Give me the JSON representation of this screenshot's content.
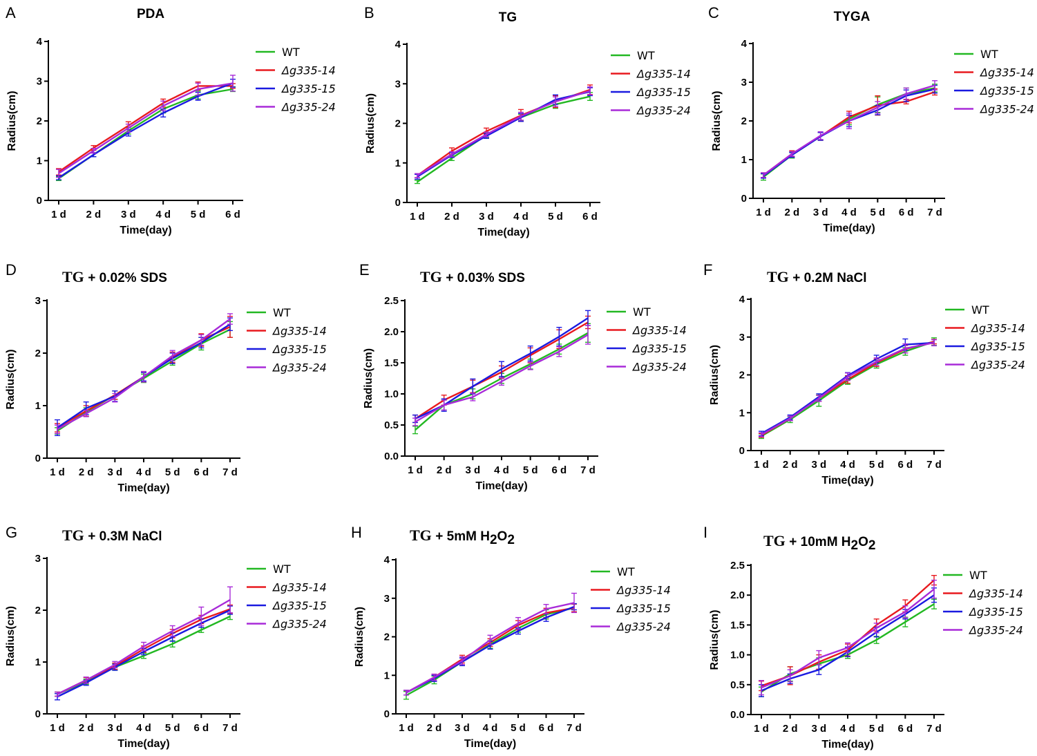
{
  "series_names": [
    "WT",
    "Δg335-14",
    "Δg335-15",
    "Δg335-24"
  ],
  "colors": {
    "WT": "#22b822",
    "Δg335-14": "#e8191e",
    "Δg335-15": "#1a1ae0",
    "Δg335-24": "#a82ad8",
    "axis": "#000000"
  },
  "chart_data": [
    {
      "panel": "A",
      "type": "line",
      "title": {
        "serif": "",
        "sans": "PDA",
        "sub": ""
      },
      "xlabel": "Time(day)",
      "ylabel": "Radius(cm)",
      "categories": [
        "1 d",
        "2 d",
        "3 d",
        "4 d",
        "5 d",
        "6 d"
      ],
      "ylim": [
        0,
        4
      ],
      "yticks": [
        "0",
        "1",
        "2",
        "3",
        "4"
      ],
      "series": [
        {
          "name": "WT",
          "values": [
            0.55,
            1.15,
            1.75,
            2.3,
            2.65,
            2.8
          ],
          "err": [
            0.05,
            0.05,
            0.08,
            0.1,
            0.1,
            0.06
          ]
        },
        {
          "name": "Δg335-14",
          "values": [
            0.72,
            1.32,
            1.88,
            2.45,
            2.88,
            2.88
          ],
          "err": [
            0.08,
            0.06,
            0.1,
            0.1,
            0.1,
            0.06
          ]
        },
        {
          "name": "Δg335-15",
          "values": [
            0.57,
            1.15,
            1.7,
            2.2,
            2.62,
            2.95
          ],
          "err": [
            0.05,
            0.05,
            0.08,
            0.1,
            0.1,
            0.1
          ]
        },
        {
          "name": "Δg335-24",
          "values": [
            0.68,
            1.25,
            1.82,
            2.38,
            2.8,
            2.95
          ],
          "err": [
            0.1,
            0.06,
            0.1,
            0.12,
            0.15,
            0.2
          ]
        }
      ]
    },
    {
      "panel": "B",
      "type": "line",
      "title": {
        "serif": "",
        "sans": "TG",
        "sub": ""
      },
      "xlabel": "Time(day)",
      "ylabel": "Radius(cm)",
      "categories": [
        "1 d",
        "2 d",
        "3 d",
        "4 d",
        "5 d",
        "6 d"
      ],
      "ylim": [
        0,
        4
      ],
      "yticks": [
        "0",
        "1",
        "2",
        "3",
        "4"
      ],
      "series": [
        {
          "name": "WT",
          "values": [
            0.52,
            1.12,
            1.7,
            2.15,
            2.48,
            2.68
          ],
          "err": [
            0.04,
            0.06,
            0.06,
            0.08,
            0.1,
            0.1
          ]
        },
        {
          "name": "Δg335-14",
          "values": [
            0.68,
            1.3,
            1.8,
            2.2,
            2.55,
            2.85
          ],
          "err": [
            0.05,
            0.08,
            0.08,
            0.15,
            0.15,
            0.12
          ]
        },
        {
          "name": "Δg335-15",
          "values": [
            0.65,
            1.2,
            1.68,
            2.15,
            2.6,
            2.8
          ],
          "err": [
            0.06,
            0.06,
            0.06,
            0.1,
            0.12,
            0.1
          ]
        },
        {
          "name": "Δg335-24",
          "values": [
            0.68,
            1.22,
            1.72,
            2.18,
            2.55,
            2.82
          ],
          "err": [
            0.05,
            0.06,
            0.06,
            0.1,
            0.12,
            0.1
          ]
        }
      ]
    },
    {
      "panel": "C",
      "type": "line",
      "title": {
        "serif": "",
        "sans": "TYGA",
        "sub": ""
      },
      "xlabel": "Time(day)",
      "ylabel": "Radius(cm)",
      "categories": [
        "1 d",
        "2 d",
        "3 d",
        "4 d",
        "5 d",
        "6 d",
        "7 d"
      ],
      "ylim": [
        0,
        4
      ],
      "yticks": [
        "0",
        "1",
        "2",
        "3",
        "4"
      ],
      "series": [
        {
          "name": "WT",
          "values": [
            0.55,
            1.12,
            1.6,
            2.05,
            2.42,
            2.7,
            2.85
          ],
          "err": [
            0.08,
            0.08,
            0.1,
            0.15,
            0.2,
            0.15,
            0.1
          ]
        },
        {
          "name": "Δg335-14",
          "values": [
            0.6,
            1.15,
            1.6,
            2.1,
            2.4,
            2.5,
            2.75
          ],
          "err": [
            0.06,
            0.08,
            0.1,
            0.15,
            0.25,
            0.06,
            0.08
          ]
        },
        {
          "name": "Δg335-15",
          "values": [
            0.58,
            1.12,
            1.6,
            2.0,
            2.28,
            2.65,
            2.82
          ],
          "err": [
            0.06,
            0.06,
            0.1,
            0.15,
            0.12,
            0.15,
            0.1
          ]
        },
        {
          "name": "Δg335-24",
          "values": [
            0.6,
            1.15,
            1.62,
            2.0,
            2.35,
            2.7,
            2.92
          ],
          "err": [
            0.06,
            0.06,
            0.1,
            0.2,
            0.15,
            0.15,
            0.12
          ]
        }
      ]
    },
    {
      "panel": "D",
      "type": "line",
      "title": {
        "serif": "TG",
        "sans": "+ 0.02% SDS",
        "sub": ""
      },
      "xlabel": "Time(day)",
      "ylabel": "Radius(cm)",
      "categories": [
        "1 d",
        "2 d",
        "3 d",
        "4 d",
        "5 d",
        "6 d",
        "7 d"
      ],
      "ylim": [
        0,
        3
      ],
      "yticks": [
        "0",
        "1",
        "2",
        "3"
      ],
      "series": [
        {
          "name": "WT",
          "values": [
            0.52,
            0.88,
            1.2,
            1.52,
            1.85,
            2.18,
            2.45
          ],
          "err": [
            0.06,
            0.08,
            0.08,
            0.08,
            0.08,
            0.12,
            0.15
          ]
        },
        {
          "name": "Δg335-14",
          "values": [
            0.58,
            0.9,
            1.2,
            1.55,
            1.92,
            2.25,
            2.5
          ],
          "err": [
            0.08,
            0.1,
            0.08,
            0.1,
            0.1,
            0.12,
            0.2
          ]
        },
        {
          "name": "Δg335-15",
          "values": [
            0.58,
            0.95,
            1.18,
            1.55,
            1.9,
            2.2,
            2.55
          ],
          "err": [
            0.15,
            0.12,
            0.1,
            0.08,
            0.1,
            0.1,
            0.12
          ]
        },
        {
          "name": "Δg335-24",
          "values": [
            0.55,
            0.85,
            1.15,
            1.55,
            1.95,
            2.25,
            2.65
          ],
          "err": [
            0.08,
            0.06,
            0.08,
            0.1,
            0.1,
            0.1,
            0.1
          ]
        }
      ]
    },
    {
      "panel": "E",
      "type": "line",
      "title": {
        "serif": "TG",
        "sans": "+ 0.03% SDS",
        "sub": ""
      },
      "xlabel": "Time(day)",
      "ylabel": "Radius(cm)",
      "categories": [
        "1 d",
        "2 d",
        "3 d",
        "4 d",
        "5 d",
        "6 d",
        "7 d"
      ],
      "ylim": [
        0,
        2.5
      ],
      "yticks": [
        "0.0",
        "0.5",
        "1.0",
        "1.5",
        "2.0",
        "2.5"
      ],
      "series": [
        {
          "name": "WT",
          "values": [
            0.42,
            0.82,
            1.0,
            1.25,
            1.48,
            1.72,
            1.98
          ],
          "err": [
            0.06,
            0.08,
            0.08,
            0.08,
            0.08,
            0.08,
            0.15
          ]
        },
        {
          "name": "Δg335-14",
          "values": [
            0.6,
            0.9,
            1.12,
            1.35,
            1.62,
            1.88,
            2.15
          ],
          "err": [
            0.06,
            0.08,
            0.1,
            0.1,
            0.12,
            0.15,
            0.1
          ]
        },
        {
          "name": "Δg335-15",
          "values": [
            0.6,
            0.82,
            1.12,
            1.4,
            1.65,
            1.92,
            2.22
          ],
          "err": [
            0.06,
            0.1,
            0.12,
            0.12,
            0.12,
            0.15,
            0.12
          ]
        },
        {
          "name": "Δg335-24",
          "values": [
            0.55,
            0.82,
            0.95,
            1.2,
            1.45,
            1.68,
            1.95
          ],
          "err": [
            0.06,
            0.08,
            0.06,
            0.06,
            0.06,
            0.08,
            0.15
          ]
        }
      ]
    },
    {
      "panel": "F",
      "type": "line",
      "title": {
        "serif": "TG",
        "sans": "+ 0.2M NaCl",
        "sub": ""
      },
      "xlabel": "Time(day)",
      "ylabel": "Radius(cm)",
      "categories": [
        "1 d",
        "2 d",
        "3 d",
        "4 d",
        "5 d",
        "6 d",
        "7 d"
      ],
      "ylim": [
        0,
        4
      ],
      "yticks": [
        "0",
        "1",
        "2",
        "3",
        "4"
      ],
      "series": [
        {
          "name": "WT",
          "values": [
            0.38,
            0.82,
            1.32,
            1.85,
            2.28,
            2.62,
            2.88
          ],
          "err": [
            0.06,
            0.08,
            0.15,
            0.1,
            0.1,
            0.1,
            0.1
          ]
        },
        {
          "name": "Δg335-14",
          "values": [
            0.4,
            0.85,
            1.38,
            1.88,
            2.32,
            2.68,
            2.88
          ],
          "err": [
            0.05,
            0.06,
            0.08,
            0.1,
            0.1,
            0.1,
            0.06
          ]
        },
        {
          "name": "Δg335-15",
          "values": [
            0.45,
            0.88,
            1.42,
            1.98,
            2.42,
            2.8,
            2.85
          ],
          "err": [
            0.06,
            0.06,
            0.08,
            0.08,
            0.1,
            0.15,
            0.08
          ]
        },
        {
          "name": "Δg335-24",
          "values": [
            0.42,
            0.85,
            1.38,
            1.95,
            2.35,
            2.7,
            2.85
          ],
          "err": [
            0.05,
            0.06,
            0.08,
            0.1,
            0.1,
            0.12,
            0.08
          ]
        }
      ]
    },
    {
      "panel": "G",
      "type": "line",
      "title": {
        "serif": "TG",
        "sans": "+  0.3M NaCl",
        "sub": ""
      },
      "xlabel": "Time(day)",
      "ylabel": "Radius(cm)",
      "categories": [
        "1 d",
        "2 d",
        "3 d",
        "4 d",
        "5 d",
        "6 d",
        "7 d"
      ],
      "ylim": [
        0,
        3
      ],
      "yticks": [
        "0",
        "1",
        "2",
        "3"
      ],
      "series": [
        {
          "name": "WT",
          "values": [
            0.38,
            0.62,
            0.9,
            1.12,
            1.35,
            1.62,
            1.88
          ],
          "err": [
            0.04,
            0.05,
            0.06,
            0.05,
            0.06,
            0.05,
            0.06
          ]
        },
        {
          "name": "Δg335-14",
          "values": [
            0.38,
            0.65,
            0.92,
            1.25,
            1.55,
            1.82,
            2.02
          ],
          "err": [
            0.04,
            0.05,
            0.06,
            0.06,
            0.08,
            0.08,
            0.08
          ]
        },
        {
          "name": "Δg335-15",
          "values": [
            0.33,
            0.6,
            0.9,
            1.2,
            1.48,
            1.75,
            2.0
          ],
          "err": [
            0.06,
            0.05,
            0.06,
            0.06,
            0.08,
            0.08,
            0.08
          ]
        },
        {
          "name": "Δg335-24",
          "values": [
            0.38,
            0.65,
            0.95,
            1.3,
            1.6,
            1.88,
            2.2
          ],
          "err": [
            0.04,
            0.06,
            0.06,
            0.08,
            0.1,
            0.18,
            0.25
          ]
        }
      ]
    },
    {
      "panel": "H",
      "type": "line",
      "title": {
        "serif": "TG",
        "sans": "+  5mM H",
        "sub": "2",
        "sans2": "O",
        "sub2": "2"
      },
      "xlabel": "Time(day)",
      "ylabel": "Radius(cm)",
      "categories": [
        "1 d",
        "2 d",
        "3 d",
        "4 d",
        "5 d",
        "6 d",
        "7 d"
      ],
      "ylim": [
        0,
        4
      ],
      "yticks": [
        "0",
        "1",
        "2",
        "3",
        "4"
      ],
      "series": [
        {
          "name": "WT",
          "values": [
            0.48,
            0.88,
            1.35,
            1.8,
            2.22,
            2.58,
            2.75
          ],
          "err": [
            0.1,
            0.1,
            0.1,
            0.1,
            0.1,
            0.12,
            0.1
          ]
        },
        {
          "name": "Δg335-14",
          "values": [
            0.55,
            0.95,
            1.42,
            1.85,
            2.3,
            2.62,
            2.75
          ],
          "err": [
            0.06,
            0.08,
            0.1,
            0.1,
            0.12,
            0.12,
            0.1
          ]
        },
        {
          "name": "Δg335-15",
          "values": [
            0.55,
            0.92,
            1.35,
            1.78,
            2.15,
            2.5,
            2.78
          ],
          "err": [
            0.06,
            0.08,
            0.1,
            0.1,
            0.08,
            0.1,
            0.08
          ]
        },
        {
          "name": "Δg335-24",
          "values": [
            0.55,
            0.95,
            1.38,
            1.92,
            2.35,
            2.72,
            2.88
          ],
          "err": [
            0.06,
            0.08,
            0.1,
            0.12,
            0.15,
            0.12,
            0.25
          ]
        }
      ]
    },
    {
      "panel": "I",
      "type": "line",
      "title": {
        "serif": "TG",
        "sans": "+ 10mM H",
        "sub": "2",
        "sans2": "O",
        "sub2": "2"
      },
      "xlabel": "Time(day)",
      "ylabel": "Radius(cm)",
      "categories": [
        "1 d",
        "2 d",
        "3 d",
        "4 d",
        "5 d",
        "6 d",
        "7 d"
      ],
      "ylim": [
        0,
        2.5
      ],
      "yticks": [
        "0.0",
        "0.5",
        "1.0",
        "1.5",
        "2.0",
        "2.5"
      ],
      "series": [
        {
          "name": "WT",
          "values": [
            0.38,
            0.68,
            0.85,
            1.0,
            1.25,
            1.55,
            1.85
          ],
          "err": [
            0.08,
            0.12,
            0.1,
            0.06,
            0.06,
            0.08,
            0.08
          ]
        },
        {
          "name": "Δg335-14",
          "values": [
            0.48,
            0.65,
            0.88,
            1.08,
            1.5,
            1.82,
            2.25
          ],
          "err": [
            0.08,
            0.15,
            0.12,
            0.1,
            0.1,
            0.1,
            0.08
          ]
        },
        {
          "name": "Δg335-15",
          "values": [
            0.4,
            0.6,
            0.75,
            1.05,
            1.38,
            1.68,
            2.0
          ],
          "err": [
            0.1,
            0.08,
            0.08,
            0.08,
            0.08,
            0.08,
            0.12
          ]
        },
        {
          "name": "Δg335-24",
          "values": [
            0.45,
            0.65,
            0.95,
            1.12,
            1.45,
            1.72,
            2.1
          ],
          "err": [
            0.12,
            0.1,
            0.12,
            0.08,
            0.08,
            0.1,
            0.15
          ]
        }
      ]
    }
  ]
}
